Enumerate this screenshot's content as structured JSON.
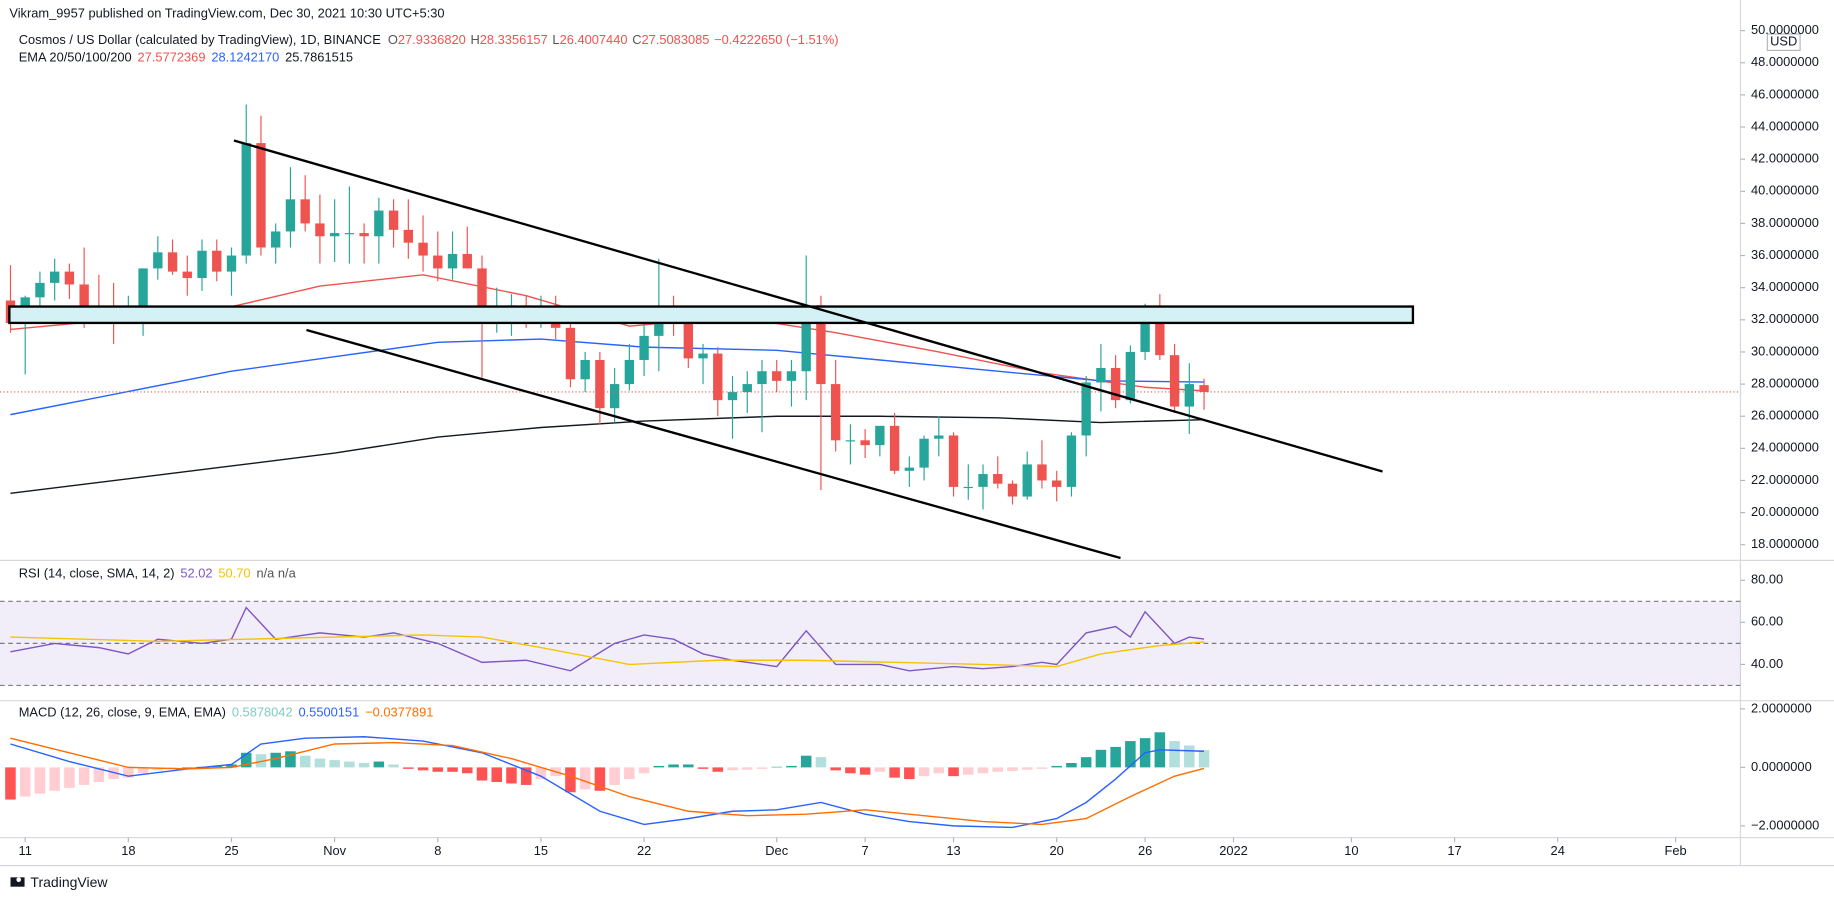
{
  "header": {
    "publisher": "Vikram_9957 published on TradingView.com, Dec 30, 2021 10:30 UTC+5:30",
    "footer": "TradingView",
    "currency": "USD"
  },
  "chart_data": [
    {
      "type": "candlestick",
      "title": "Cosmos / US Dollar (calculated by TradingView), 1D, BINANCE",
      "legend": [
        {
          "label": "O",
          "value": "27.9336820"
        },
        {
          "label": "H",
          "value": "28.3356157"
        },
        {
          "label": "L",
          "value": "26.4007440"
        },
        {
          "label": "C",
          "value": "27.5083085"
        }
      ],
      "change": "−0.4222650 (−1.51%)",
      "up_color": "#26a69a",
      "down_color": "#ef5350",
      "open": [
        33.2,
        31.8,
        33.4,
        34.3,
        35.0,
        34.2,
        32.8,
        32.6,
        32.0,
        32.4,
        35.2,
        36.2,
        35.0,
        34.6,
        36.3,
        35.0,
        36.0,
        43.0,
        36.5,
        37.5,
        39.5,
        38.0,
        37.2,
        37.4,
        37.4,
        37.2,
        38.8,
        37.6,
        36.8,
        36.0,
        35.2,
        36.1,
        35.2,
        32.0,
        32.2,
        32.9,
        32.2,
        32.6,
        31.5,
        28.3,
        29.5,
        26.5,
        28.0,
        29.5,
        31.0,
        32.5,
        31.8,
        29.6,
        29.9,
        27.0,
        27.5,
        28.0,
        28.8,
        28.2,
        28.8,
        32.9,
        28.0,
        24.5,
        24.5,
        24.2,
        25.4,
        22.6,
        22.8,
        24.6,
        24.8,
        21.6,
        21.6,
        22.4,
        21.8,
        21.0,
        23.0,
        22.0,
        21.6,
        24.8,
        28.1,
        29.0,
        27.0,
        30.0,
        32.4,
        29.8,
        26.6,
        27.933682
      ],
      "high": [
        35.4,
        33.5,
        35.0,
        35.8,
        35.5,
        36.5,
        34.8,
        34.3,
        33.5,
        35.2,
        37.2,
        37.0,
        36.0,
        37.0,
        37.0,
        36.5,
        45.4,
        44.7,
        38.0,
        41.5,
        41.0,
        39.8,
        39.5,
        40.3,
        38.0,
        39.6,
        39.5,
        39.5,
        38.5,
        37.5,
        37.5,
        37.8,
        36.0,
        34.0,
        33.6,
        33.5,
        33.5,
        33.5,
        31.8,
        30.0,
        30.0,
        29.0,
        30.5,
        32.0,
        35.8,
        33.5,
        32.5,
        30.5,
        30.3,
        28.5,
        28.8,
        29.5,
        29.5,
        29.5,
        36.0,
        33.5,
        29.5,
        25.5,
        25.2,
        25.4,
        26.2,
        23.5,
        24.8,
        26.0,
        25.0,
        23.0,
        23.0,
        23.5,
        22.0,
        23.8,
        24.5,
        22.6,
        25.0,
        28.5,
        30.5,
        29.8,
        30.4,
        33.0,
        33.6,
        30.5,
        29.3,
        28.3356157
      ],
      "low": [
        31.2,
        28.6,
        32.0,
        33.2,
        33.3,
        31.5,
        31.8,
        30.5,
        31.8,
        31.0,
        34.5,
        34.8,
        33.5,
        33.8,
        34.4,
        33.5,
        35.5,
        36.0,
        35.5,
        36.5,
        37.5,
        35.5,
        35.6,
        35.5,
        35.5,
        35.5,
        36.5,
        35.8,
        35.0,
        34.4,
        34.5,
        35.2,
        28.4,
        31.2,
        31.0,
        31.5,
        31.5,
        30.8,
        27.8,
        27.5,
        25.5,
        25.6,
        27.6,
        28.5,
        28.8,
        31.0,
        29.0,
        28.0,
        26.0,
        24.6,
        26.2,
        25.0,
        27.5,
        26.6,
        27.0,
        21.4,
        23.8,
        23.0,
        23.4,
        23.5,
        22.4,
        21.6,
        22.0,
        23.5,
        21.0,
        20.8,
        20.2,
        21.5,
        20.5,
        20.8,
        21.5,
        20.7,
        21.0,
        23.5,
        26.3,
        26.5,
        26.8,
        29.5,
        29.5,
        26.2,
        24.9,
        26.400744
      ],
      "close": [
        31.8,
        33.4,
        34.3,
        35.0,
        34.2,
        32.8,
        32.6,
        32.0,
        32.4,
        35.2,
        36.2,
        35.0,
        34.6,
        36.3,
        35.0,
        36.0,
        43.0,
        36.5,
        37.5,
        39.5,
        38.0,
        37.2,
        37.4,
        37.4,
        37.2,
        38.8,
        37.6,
        36.8,
        36.0,
        35.2,
        36.1,
        35.2,
        32.0,
        32.2,
        32.9,
        32.2,
        32.6,
        31.5,
        28.3,
        29.5,
        26.5,
        28.0,
        29.5,
        31.0,
        32.5,
        31.8,
        29.6,
        29.9,
        27.0,
        27.5,
        28.0,
        28.8,
        28.2,
        28.8,
        32.9,
        28.0,
        24.5,
        24.5,
        24.2,
        25.4,
        22.6,
        22.8,
        24.6,
        24.8,
        21.6,
        21.6,
        22.4,
        21.8,
        21.0,
        23.0,
        22.0,
        21.6,
        24.8,
        28.1,
        29.0,
        27.0,
        30.0,
        32.4,
        29.8,
        26.6,
        28.0,
        27.5083085
      ],
      "overlay_title": "EMA 20/50/100/200",
      "series": [
        {
          "label": "27.5772369",
          "color": "#ef5350",
          "x": [
            0,
            7,
            14,
            21,
            28,
            35,
            42,
            49,
            56,
            63,
            70,
            77,
            81
          ],
          "values": [
            31.4,
            32.0,
            32.6,
            34.1,
            34.8,
            33.5,
            31.6,
            32.2,
            31.2,
            30.0,
            28.7,
            27.8,
            27.5772369
          ]
        },
        {
          "label": "28.1242170",
          "color": "#2962ff",
          "x": [
            0,
            15,
            22,
            29,
            36,
            43,
            52,
            59,
            67,
            74,
            81
          ],
          "values": [
            26.1,
            28.8,
            29.7,
            30.6,
            30.8,
            30.3,
            30.1,
            29.5,
            28.8,
            28.2,
            28.124217
          ]
        },
        {
          "label": "25.7861515",
          "color": "#131722",
          "x": [
            0,
            15,
            22,
            29,
            36,
            43,
            52,
            59,
            67,
            74,
            81
          ],
          "values": [
            21.2,
            22.9,
            23.7,
            24.7,
            25.3,
            25.7,
            26.0,
            26.0,
            25.9,
            25.6,
            25.7861515
          ]
        }
      ],
      "xlim": [
        -0.71,
        117.4
      ],
      "xticks": [
        {
          "value": 1,
          "label": "11"
        },
        {
          "value": 8,
          "label": "18"
        },
        {
          "value": 15,
          "label": "25"
        },
        {
          "value": 22,
          "label": "Nov"
        },
        {
          "value": 29,
          "label": "8"
        },
        {
          "value": 36,
          "label": "15"
        },
        {
          "value": 43,
          "label": "22"
        },
        {
          "value": 52,
          "label": "Dec"
        },
        {
          "value": 58,
          "label": "7"
        },
        {
          "value": 64,
          "label": "13"
        },
        {
          "value": 71,
          "label": "20"
        },
        {
          "value": 77,
          "label": "26"
        },
        {
          "value": 83,
          "label": "2022"
        },
        {
          "value": 91,
          "label": "10"
        },
        {
          "value": 98,
          "label": "17"
        },
        {
          "value": 105,
          "label": "24"
        },
        {
          "value": 113,
          "label": "Feb"
        }
      ],
      "ylim": [
        17.1,
        51.9
      ],
      "yticks": [
        {
          "value": 18,
          "label": "18.0000000"
        },
        {
          "value": 20,
          "label": "20.0000000"
        },
        {
          "value": 22,
          "label": "22.0000000"
        },
        {
          "value": 24,
          "label": "24.0000000"
        },
        {
          "value": 26,
          "label": "26.0000000"
        },
        {
          "value": 28,
          "label": "28.0000000"
        },
        {
          "value": 30,
          "label": "30.0000000"
        },
        {
          "value": 32,
          "label": "32.0000000"
        },
        {
          "value": 34,
          "label": "34.0000000"
        },
        {
          "value": 36,
          "label": "36.0000000"
        },
        {
          "value": 38,
          "label": "38.0000000"
        },
        {
          "value": 40,
          "label": "40.0000000"
        },
        {
          "value": 42,
          "label": "42.0000000"
        },
        {
          "value": 44,
          "label": "44.0000000"
        },
        {
          "value": 46,
          "label": "46.0000000"
        },
        {
          "value": 48,
          "label": "48.0000000"
        },
        {
          "value": 50,
          "label": "50.0000000"
        }
      ],
      "grid": false
    },
    {
      "type": "rsi",
      "title": "RSI (14, close, SMA, 14, 2)",
      "extra_label": "n/a  n/a",
      "bands": [
        70,
        50,
        30
      ],
      "series": [
        {
          "label": "52.02",
          "color": "#7e57c2",
          "x": [
            0,
            3,
            6,
            8,
            10,
            13,
            15,
            16,
            18,
            21,
            24,
            26,
            29,
            32,
            35,
            38,
            41,
            43,
            45,
            47,
            49,
            52,
            54,
            56,
            59,
            61,
            64,
            66,
            68,
            70,
            71,
            73,
            75,
            76,
            77,
            79,
            80,
            81
          ],
          "values": [
            46,
            50,
            48,
            45,
            52,
            50,
            52,
            67,
            52,
            55,
            53,
            55,
            50,
            41,
            42,
            37,
            50,
            54,
            52,
            45,
            42,
            39,
            56,
            40,
            40,
            37,
            39,
            38,
            39,
            41,
            40,
            55,
            58,
            53,
            65,
            50,
            53,
            52.02
          ]
        },
        {
          "label": "50.70",
          "color": "#f5c400",
          "x": [
            0,
            10,
            16,
            22,
            28,
            32,
            36,
            42,
            48,
            54,
            60,
            66,
            71,
            74,
            78,
            81
          ],
          "values": [
            53,
            51,
            52,
            53,
            54,
            53,
            48,
            40,
            42,
            42,
            41,
            40,
            39,
            45,
            49,
            50.7
          ]
        }
      ],
      "ylim": [
        23.3,
        88.9
      ],
      "yticks": [
        {
          "value": 80,
          "label": "80.00"
        },
        {
          "value": 60,
          "label": "60.00"
        },
        {
          "value": 40,
          "label": "40.00"
        }
      ]
    },
    {
      "type": "macd",
      "title": "MACD (12, 26, close, 9, EMA, EMA)",
      "histogram": {
        "label": "0.5878042",
        "colors": [
          "#26a69a",
          "#b2dfdb",
          "#ff5252",
          "#ffcdd2"
        ],
        "values": [
          -1.1,
          -1.0,
          -0.9,
          -0.8,
          -0.7,
          -0.6,
          -0.5,
          -0.4,
          -0.35,
          -0.2,
          -0.1,
          -0.05,
          -0.05,
          0.02,
          0.05,
          0.1,
          0.5,
          0.45,
          0.5,
          0.55,
          0.4,
          0.3,
          0.25,
          0.2,
          0.15,
          0.2,
          0.1,
          -0.05,
          -0.1,
          -0.15,
          -0.15,
          -0.2,
          -0.45,
          -0.5,
          -0.55,
          -0.6,
          -0.4,
          -0.3,
          -0.85,
          -0.75,
          -0.8,
          -0.6,
          -0.4,
          -0.2,
          0.05,
          0.1,
          0.1,
          -0.05,
          -0.15,
          -0.1,
          -0.08,
          -0.05,
          0.02,
          0.05,
          0.4,
          0.35,
          -0.1,
          -0.2,
          -0.25,
          -0.15,
          -0.35,
          -0.4,
          -0.3,
          -0.2,
          -0.3,
          -0.25,
          -0.2,
          -0.15,
          -0.12,
          -0.08,
          -0.05,
          0.05,
          0.15,
          0.35,
          0.6,
          0.7,
          0.9,
          1.0,
          1.2,
          0.9,
          0.75,
          0.5878042
        ]
      },
      "series": [
        {
          "label": "0.5500151",
          "color": "#2962ff",
          "x": [
            0,
            4,
            8,
            12,
            15,
            17,
            20,
            24,
            28,
            32,
            36,
            40,
            43,
            46,
            49,
            52,
            55,
            58,
            61,
            64,
            68,
            71,
            73,
            75,
            77,
            78,
            81
          ],
          "values": [
            0.8,
            0.2,
            -0.3,
            -0.05,
            0.1,
            0.8,
            1.0,
            1.05,
            0.9,
            0.5,
            -0.3,
            -1.5,
            -1.95,
            -1.75,
            -1.5,
            -1.45,
            -1.2,
            -1.6,
            -1.85,
            -2.0,
            -2.05,
            -1.75,
            -1.2,
            -0.4,
            0.5,
            0.6,
            0.5500151
          ]
        },
        {
          "label": "−0.0377891",
          "color": "#ff6d00",
          "x": [
            0,
            4,
            8,
            12,
            15,
            18,
            22,
            26,
            30,
            34,
            38,
            42,
            46,
            50,
            54,
            58,
            62,
            66,
            70,
            73,
            76,
            79,
            81
          ],
          "values": [
            1.0,
            0.5,
            0.0,
            -0.05,
            0.0,
            0.3,
            0.8,
            0.85,
            0.75,
            0.3,
            -0.3,
            -1.0,
            -1.5,
            -1.65,
            -1.6,
            -1.45,
            -1.65,
            -1.85,
            -1.95,
            -1.75,
            -1.0,
            -0.3,
            -0.0377891
          ]
        }
      ],
      "ylim": [
        -2.4,
        2.24
      ],
      "yticks": [
        {
          "value": 2,
          "label": "2.0000000"
        },
        {
          "value": 0,
          "label": "0.0000000"
        },
        {
          "value": -2,
          "label": "−2.0000000"
        }
      ]
    }
  ]
}
